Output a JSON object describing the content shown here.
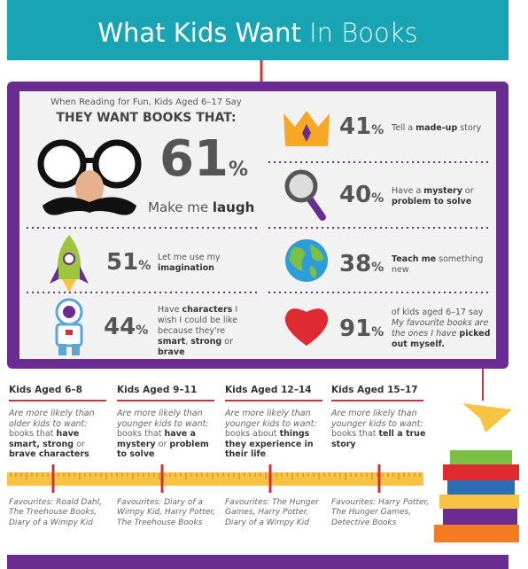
{
  "header": {
    "title_main": "What Kids Want",
    "title_light": "In Books"
  },
  "intro": {
    "line1": "When Reading for Fun, Kids Aged 6–17 Say",
    "line2": "THEY WANT BOOKS THAT:"
  },
  "stats": [
    {
      "value": 61,
      "unit": "%",
      "text": [
        {
          "text": "Make me "
        },
        {
          "text": "laugh",
          "bold": true
        }
      ]
    },
    {
      "value": 51,
      "unit": "%",
      "text": [
        {
          "text": "Let me use my "
        },
        {
          "text": "imagination",
          "bold": true
        }
      ]
    },
    {
      "value": 44,
      "unit": "%",
      "text": [
        {
          "text": "Have "
        },
        {
          "text": "characters",
          "bold": true
        },
        {
          "text": " I wish I could be like because they're "
        },
        {
          "text": "smart",
          "bold": true
        },
        {
          "text": ", "
        },
        {
          "text": "strong",
          "bold": true
        },
        {
          "text": " or "
        },
        {
          "text": "brave",
          "bold": true
        }
      ]
    },
    {
      "value": 41,
      "unit": "%",
      "text": [
        {
          "text": "Tell a "
        },
        {
          "text": "made-up",
          "bold": true
        },
        {
          "text": " story"
        }
      ]
    },
    {
      "value": 40,
      "unit": "%",
      "text": [
        {
          "text": "Have a "
        },
        {
          "text": "mystery",
          "bold": true
        },
        {
          "text": " or "
        },
        {
          "text": "problem to solve",
          "bold": true
        }
      ]
    },
    {
      "value": 38,
      "unit": "%",
      "text": [
        {
          "text": "Teach me",
          "bold": true
        },
        {
          "text": " something new"
        }
      ]
    },
    {
      "value": 91,
      "unit": "%",
      "text": [
        {
          "text": "of kids aged 6–17 say "
        },
        {
          "text": "My favourite books are the ones I have ",
          "italic": true
        },
        {
          "text": "picked out myself.",
          "bold": true
        }
      ]
    }
  ],
  "age_groups": [
    {
      "heading": "Kids Aged 6–8",
      "lead": "Are more likely than older kids to want:",
      "text": [
        {
          "text": "books that "
        },
        {
          "text": "have smart, strong",
          "bold": true
        },
        {
          "text": " or "
        },
        {
          "text": "brave characters",
          "bold": true
        }
      ],
      "favourites": "Favourites: Roald Dahl, The Treehouse Books, Diary of a Wimpy Kid"
    },
    {
      "heading": "Kids Aged 9–11",
      "lead": "Are more likely than younger kids to want:",
      "text": [
        {
          "text": "books that "
        },
        {
          "text": "have a mystery",
          "bold": true
        },
        {
          "text": " or "
        },
        {
          "text": "problem to solve",
          "bold": true
        }
      ],
      "favourites": "Favourites: Diary of a Wimpy Kid, Harry Potter, The Treehouse Books"
    },
    {
      "heading": "Kids Aged 12–14",
      "lead": "Are more likely than younger kids to want:",
      "text": [
        {
          "text": "books about "
        },
        {
          "text": "things they experience in their life",
          "bold": true
        }
      ],
      "favourites": "Favourites: The Hunger Games, Harry Potter, Diary of a Wimpy Kid"
    },
    {
      "heading": "Kids Aged 15–17",
      "lead": "Are more likely than younger kids to want:",
      "text": [
        {
          "text": "books that "
        },
        {
          "text": "tell a true story",
          "bold": true
        }
      ],
      "favourites": "Favourites: Harry Potter, The Hunger Games, Detective Books"
    }
  ]
}
